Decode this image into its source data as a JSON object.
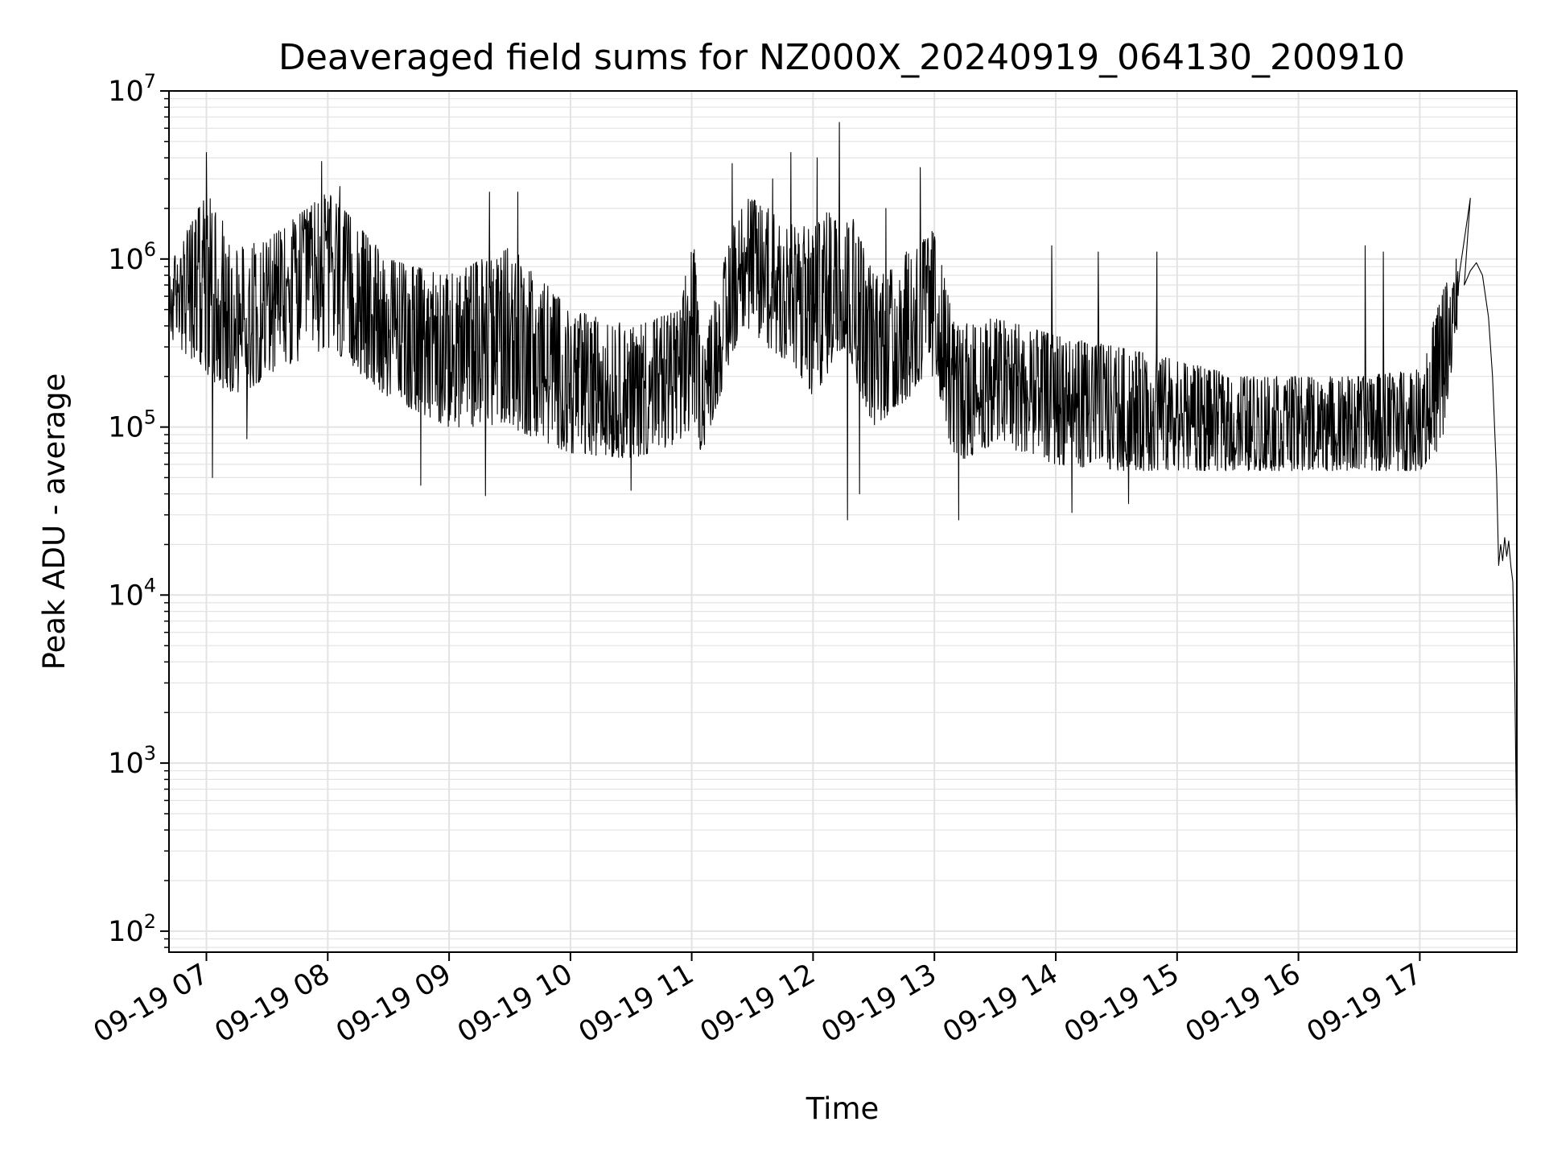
{
  "chart_data": {
    "type": "line",
    "title": "Deaveraged field sums for NZ000X_20240919_064130_200910",
    "xlabel": "Time",
    "ylabel": "Peak ADU - average",
    "yscale": "log",
    "ylim": [
      75,
      10000000
    ],
    "xlim": [
      "2024-09-19 06:41:30",
      "2024-09-19 17:48:00"
    ],
    "grid": true,
    "legend": "none",
    "line_color": "#000000",
    "grid_color": "#e3e3e3",
    "x_ticks": [
      {
        "time": "2024-09-19 07:00",
        "label": "09-19 07"
      },
      {
        "time": "2024-09-19 08:00",
        "label": "09-19 08"
      },
      {
        "time": "2024-09-19 09:00",
        "label": "09-19 09"
      },
      {
        "time": "2024-09-19 10:00",
        "label": "09-19 10"
      },
      {
        "time": "2024-09-19 11:00",
        "label": "09-19 11"
      },
      {
        "time": "2024-09-19 12:00",
        "label": "09-19 12"
      },
      {
        "time": "2024-09-19 13:00",
        "label": "09-19 13"
      },
      {
        "time": "2024-09-19 14:00",
        "label": "09-19 14"
      },
      {
        "time": "2024-09-19 15:00",
        "label": "09-19 15"
      },
      {
        "time": "2024-09-19 16:00",
        "label": "09-19 16"
      },
      {
        "time": "2024-09-19 17:00",
        "label": "09-19 17"
      }
    ],
    "y_ticks": [
      {
        "value": 100,
        "base": "10",
        "exp": "2"
      },
      {
        "value": 1000,
        "base": "10",
        "exp": "3"
      },
      {
        "value": 10000,
        "base": "10",
        "exp": "4"
      },
      {
        "value": 100000,
        "base": "10",
        "exp": "5"
      },
      {
        "value": 1000000,
        "base": "10",
        "exp": "6"
      },
      {
        "value": 10000000,
        "base": "10",
        "exp": "7"
      }
    ],
    "series": [
      {
        "envelope": [
          {
            "t": "2024-09-19 06:41:30",
            "low": 350000,
            "high": 900000
          },
          {
            "t": "2024-09-19 07:00",
            "low": 200000,
            "high": 2500000
          },
          {
            "t": "2024-09-19 07:15",
            "low": 150000,
            "high": 1200000
          },
          {
            "t": "2024-09-19 07:30",
            "low": 200000,
            "high": 1300000
          },
          {
            "t": "2024-09-19 08:00",
            "low": 300000,
            "high": 2500000
          },
          {
            "t": "2024-09-19 08:30",
            "low": 150000,
            "high": 1000000
          },
          {
            "t": "2024-09-19 09:00",
            "low": 100000,
            "high": 800000
          },
          {
            "t": "2024-09-19 09:30",
            "low": 100000,
            "high": 1200000
          },
          {
            "t": "2024-09-19 10:00",
            "low": 70000,
            "high": 500000
          },
          {
            "t": "2024-09-19 10:30",
            "low": 65000,
            "high": 400000
          },
          {
            "t": "2024-09-19 10:55",
            "low": 80000,
            "high": 500000
          },
          {
            "t": "2024-09-19 11:00",
            "low": 100000,
            "high": 1800000
          },
          {
            "t": "2024-09-19 11:05",
            "low": 70000,
            "high": 300000
          },
          {
            "t": "2024-09-19 11:25",
            "low": 400000,
            "high": 2500000
          },
          {
            "t": "2024-09-19 11:45",
            "low": 250000,
            "high": 1800000
          },
          {
            "t": "2024-09-19 12:00",
            "low": 150000,
            "high": 1500000
          },
          {
            "t": "2024-09-19 12:15",
            "low": 300000,
            "high": 2500000
          },
          {
            "t": "2024-09-19 12:30",
            "low": 100000,
            "high": 800000
          },
          {
            "t": "2024-09-19 13:00",
            "low": 200000,
            "high": 1500000
          },
          {
            "t": "2024-09-19 13:10",
            "low": 60000,
            "high": 400000
          },
          {
            "t": "2024-09-19 13:30",
            "low": 80000,
            "high": 450000
          },
          {
            "t": "2024-09-19 14:00",
            "low": 60000,
            "high": 350000
          },
          {
            "t": "2024-09-19 14:30",
            "low": 55000,
            "high": 300000
          },
          {
            "t": "2024-09-19 15:00",
            "low": 55000,
            "high": 250000
          },
          {
            "t": "2024-09-19 15:30",
            "low": 55000,
            "high": 200000
          },
          {
            "t": "2024-09-19 16:00",
            "low": 55000,
            "high": 200000
          },
          {
            "t": "2024-09-19 16:30",
            "low": 55000,
            "high": 200000
          },
          {
            "t": "2024-09-19 17:00",
            "low": 55000,
            "high": 220000
          },
          {
            "t": "2024-09-19 17:12",
            "low": 80000,
            "high": 700000
          },
          {
            "t": "2024-09-19 17:20",
            "low": 500000,
            "high": 900000
          }
        ],
        "spikes": [
          {
            "t": "2024-09-19 06:56",
            "value": 2000000
          },
          {
            "t": "2024-09-19 07:00",
            "value": 4300000
          },
          {
            "t": "2024-09-19 07:03",
            "value": 50000
          },
          {
            "t": "2024-09-19 07:20",
            "value": 85000
          },
          {
            "t": "2024-09-19 07:57",
            "value": 3800000
          },
          {
            "t": "2024-09-19 08:06",
            "value": 2700000
          },
          {
            "t": "2024-09-19 08:46",
            "value": 45000
          },
          {
            "t": "2024-09-19 09:18",
            "value": 39000
          },
          {
            "t": "2024-09-19 09:20",
            "value": 2500000
          },
          {
            "t": "2024-09-19 09:34",
            "value": 2500000
          },
          {
            "t": "2024-09-19 10:30",
            "value": 42000
          },
          {
            "t": "2024-09-19 11:20",
            "value": 3700000
          },
          {
            "t": "2024-09-19 11:40",
            "value": 3000000
          },
          {
            "t": "2024-09-19 11:49",
            "value": 4300000
          },
          {
            "t": "2024-09-19 12:02",
            "value": 4000000
          },
          {
            "t": "2024-09-19 12:13",
            "value": 6500000
          },
          {
            "t": "2024-09-19 12:17",
            "value": 28000
          },
          {
            "t": "2024-09-19 12:23",
            "value": 40000
          },
          {
            "t": "2024-09-19 12:36",
            "value": 2000000
          },
          {
            "t": "2024-09-19 12:53",
            "value": 3500000
          },
          {
            "t": "2024-09-19 13:12",
            "value": 28000
          },
          {
            "t": "2024-09-19 13:58",
            "value": 1200000
          },
          {
            "t": "2024-09-19 14:08",
            "value": 31000
          },
          {
            "t": "2024-09-19 14:21",
            "value": 1100000
          },
          {
            "t": "2024-09-19 14:36",
            "value": 35000
          },
          {
            "t": "2024-09-19 14:50",
            "value": 1100000
          },
          {
            "t": "2024-09-19 16:33",
            "value": 1200000
          },
          {
            "t": "2024-09-19 16:42",
            "value": 1100000
          },
          {
            "t": "2024-09-19 17:18",
            "value": 1000000
          },
          {
            "t": "2024-09-19 17:25",
            "value": 2300000
          }
        ],
        "tail": [
          {
            "t": "2024-09-19 17:22",
            "value": 700000
          },
          {
            "t": "2024-09-19 17:25",
            "value": 850000
          },
          {
            "t": "2024-09-19 17:28",
            "value": 950000
          },
          {
            "t": "2024-09-19 17:31",
            "value": 800000
          },
          {
            "t": "2024-09-19 17:34",
            "value": 450000
          },
          {
            "t": "2024-09-19 17:36",
            "value": 200000
          },
          {
            "t": "2024-09-19 17:38",
            "value": 50000
          },
          {
            "t": "2024-09-19 17:39",
            "value": 15000
          },
          {
            "t": "2024-09-19 17:40",
            "value": 20000
          },
          {
            "t": "2024-09-19 17:41",
            "value": 16000
          },
          {
            "t": "2024-09-19 17:42",
            "value": 22000
          },
          {
            "t": "2024-09-19 17:43",
            "value": 17000
          },
          {
            "t": "2024-09-19 17:44",
            "value": 21000
          },
          {
            "t": "2024-09-19 17:45",
            "value": 15000
          },
          {
            "t": "2024-09-19 17:46",
            "value": 12000
          },
          {
            "t": "2024-09-19 17:47",
            "value": 3000
          },
          {
            "t": "2024-09-19 17:48",
            "value": 280
          }
        ]
      }
    ]
  }
}
